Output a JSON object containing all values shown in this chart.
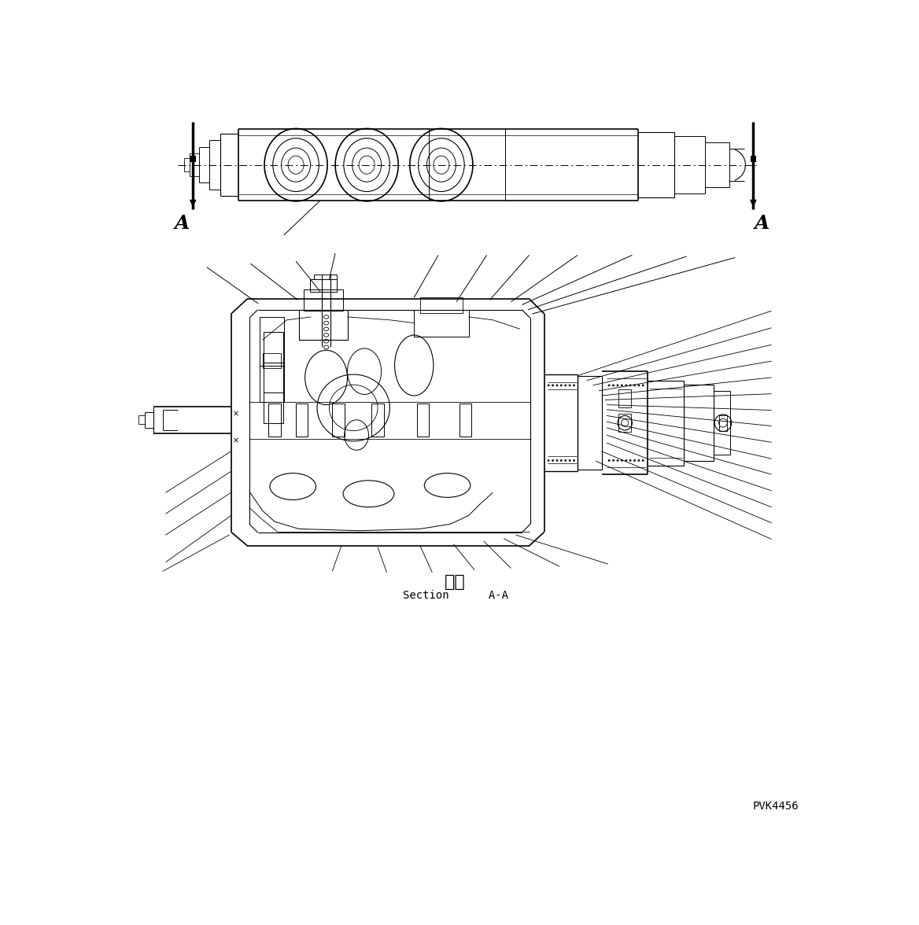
{
  "bg_color": "#ffffff",
  "line_color": "#000000",
  "fig_width": 11.68,
  "fig_height": 11.76,
  "dpi": 100,
  "section_label_ja": "断面",
  "section_label_en": "Section      A-A",
  "label_A": "A",
  "code": "PVK4456"
}
